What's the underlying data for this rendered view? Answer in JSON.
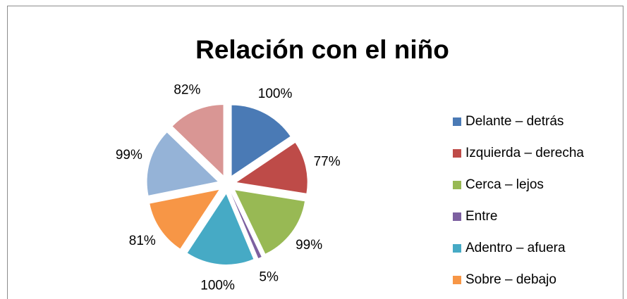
{
  "chart_data": {
    "type": "pie",
    "title": "Relación con el niño",
    "categories": [
      "Delante – detrás",
      "Izquierda – derecha",
      "Cerca – lejos",
      "Entre",
      "Adentro – afuera",
      "Sobre – debajo",
      null,
      null
    ],
    "values": [
      100,
      77,
      99,
      5,
      100,
      81,
      99,
      82
    ],
    "value_labels": [
      "100%",
      "77%",
      "99%",
      "5%",
      "100%",
      "81%",
      "99%",
      "82%"
    ],
    "colors": [
      "#4a7ab5",
      "#be4b48",
      "#98b954",
      "#7d60a0",
      "#46aac5",
      "#f79646",
      "#95b3d7",
      "#d99694"
    ],
    "legend": "right"
  }
}
